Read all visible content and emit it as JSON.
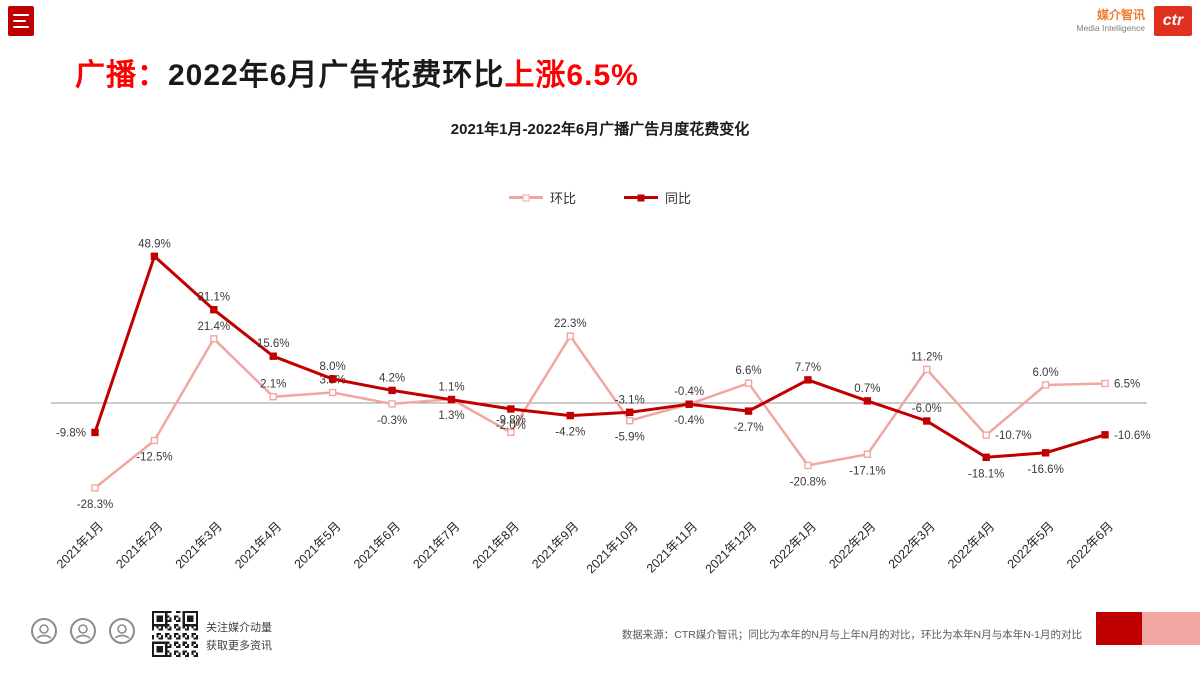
{
  "header": {
    "brand_cn": "媒介智讯",
    "brand_en": "Media Intelligence",
    "logo_text": "ctr"
  },
  "title": {
    "prefix": "广播：",
    "middle": "2022年6月广告花费环比",
    "highlight": "上涨6.5%"
  },
  "colors": {
    "accent_red": "#c00000",
    "accent_pink": "#f2a6a1",
    "title_red": "#ff0000",
    "brand_orange": "#ed7d31",
    "logo_red": "#e0301e"
  },
  "chart_data": {
    "type": "line",
    "title": "2021年1月-2022年6月广播广告月度花费变化",
    "categories": [
      "2021年1月",
      "2021年2月",
      "2021年3月",
      "2021年4月",
      "2021年5月",
      "2021年6月",
      "2021年7月",
      "2021年8月",
      "2021年9月",
      "2021年10月",
      "2021年11月",
      "2021年12月",
      "2022年1月",
      "2022年2月",
      "2022年3月",
      "2022年4月",
      "2022年5月",
      "2022年6月"
    ],
    "series": [
      {
        "name": "环比",
        "color": "#f2a6a1",
        "marker": "open",
        "values": [
          -28.3,
          -12.5,
          21.4,
          2.1,
          3.5,
          -0.3,
          1.3,
          -9.8,
          22.3,
          -5.9,
          -0.4,
          6.6,
          -20.8,
          -17.1,
          11.2,
          -10.7,
          6.0,
          6.5
        ],
        "label_pos": [
          "below",
          "below",
          "above",
          "above",
          "above",
          "below",
          "below",
          "above",
          "above",
          "below",
          "above",
          "above",
          "below",
          "below",
          "above",
          "right",
          "above",
          "right"
        ]
      },
      {
        "name": "同比",
        "color": "#c00000",
        "marker": "filled",
        "values": [
          -9.8,
          48.9,
          31.1,
          15.6,
          8.0,
          4.2,
          1.1,
          -2.0,
          -4.2,
          -3.1,
          -0.4,
          -2.7,
          7.7,
          0.7,
          -6.0,
          -18.1,
          -16.6,
          -10.6
        ],
        "label_pos": [
          "left",
          "above",
          "above",
          "above",
          "above",
          "above",
          "above",
          "below",
          "below",
          "above",
          "below",
          "below",
          "above",
          "above",
          "above",
          "below",
          "below",
          "right"
        ]
      }
    ],
    "ylim": [
      -35,
      55
    ],
    "zero_line": true,
    "grid": false,
    "legend_position": "top",
    "label_format": "0.0%"
  },
  "footer": {
    "qr_caption": [
      "关注媒介动量",
      "获取更多资讯"
    ],
    "source": "数据来源：CTR媒介智讯；同比为本年的N月与上年N月的对比，环比为本年N月与本年N-1月的对比"
  }
}
